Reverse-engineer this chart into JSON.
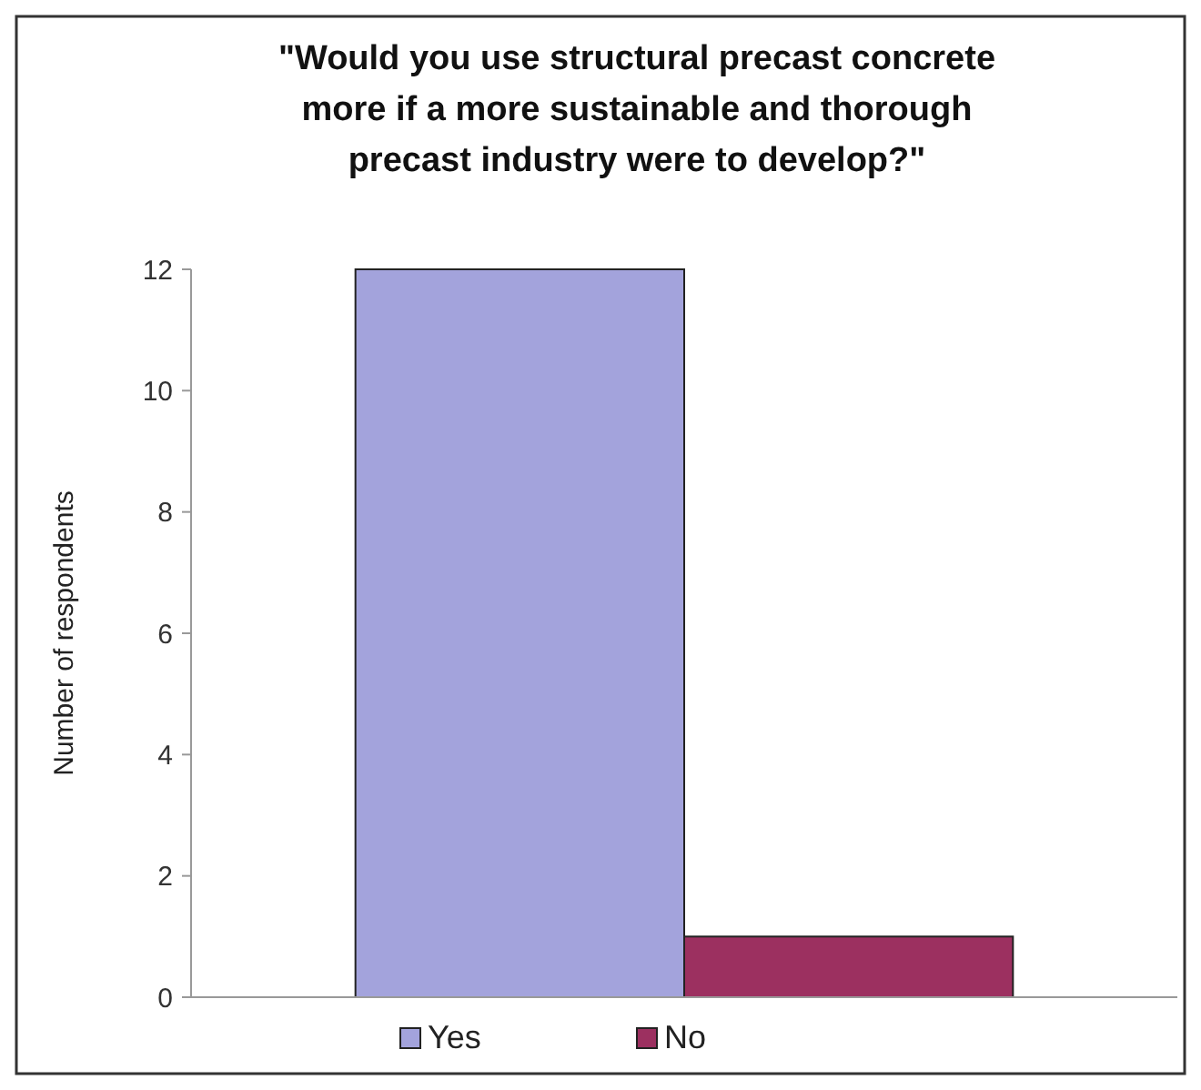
{
  "chart_data": {
    "type": "bar",
    "title": "\"Would you use structural precast concrete more if a more sustainable and thorough precast industry were to develop?\"",
    "ylabel": "Number of respondents",
    "categories": [
      null
    ],
    "series": [
      {
        "name": "Yes",
        "color": "#a3a3dc",
        "values": [
          12
        ]
      },
      {
        "name": "No",
        "color": "#9c3060",
        "values": [
          1
        ]
      }
    ],
    "ylim": [
      0,
      12
    ],
    "yticks": [
      0,
      2,
      4,
      6,
      8,
      10,
      12
    ],
    "grid": false,
    "legend": "bottom"
  }
}
